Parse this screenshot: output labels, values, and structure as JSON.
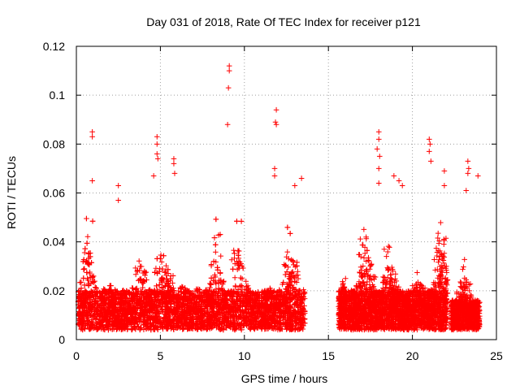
{
  "chart_data": {
    "type": "scatter",
    "title": "Day 031 of 2018, Rate Of TEC Index for receiver p121",
    "xlabel": "GPS time / hours",
    "ylabel": "ROTI / TECUs",
    "xlim": [
      0,
      25
    ],
    "ylim": [
      0,
      0.12
    ],
    "xticks": [
      0,
      5,
      10,
      15,
      20,
      25
    ],
    "yticks": [
      0,
      0.02,
      0.04,
      0.06,
      0.08,
      0.1,
      0.12
    ],
    "xtick_labels": [
      "0",
      "5",
      "10",
      "15",
      "20",
      "25"
    ],
    "ytick_labels": [
      "0",
      "0.02",
      "0.04",
      "0.06",
      "0.08",
      "0.1",
      "0.12"
    ],
    "grid": true,
    "marker": "+",
    "color": "#ff0000",
    "series": [
      {
        "name": "ROTI",
        "description_segments": [
          {
            "x_range": [
              0.1,
              13.6
            ],
            "baseline_range": [
              0.004,
              0.02
            ],
            "envelope": "bursty"
          },
          {
            "x_range": [
              15.6,
              22.1
            ],
            "baseline_range": [
              0.004,
              0.02
            ],
            "envelope": "bursty"
          },
          {
            "x_range": [
              22.3,
              24.0
            ],
            "baseline_range": [
              0.004,
              0.016
            ],
            "envelope": "bursty"
          }
        ],
        "peaks": [
          {
            "x": 0.95,
            "y": 0.085
          },
          {
            "x": 0.95,
            "y": 0.083
          },
          {
            "x": 0.95,
            "y": 0.065
          },
          {
            "x": 2.5,
            "y": 0.063
          },
          {
            "x": 2.5,
            "y": 0.057
          },
          {
            "x": 4.8,
            "y": 0.083
          },
          {
            "x": 4.8,
            "y": 0.08
          },
          {
            "x": 4.8,
            "y": 0.076
          },
          {
            "x": 4.85,
            "y": 0.074
          },
          {
            "x": 4.6,
            "y": 0.067
          },
          {
            "x": 5.8,
            "y": 0.074
          },
          {
            "x": 5.8,
            "y": 0.072
          },
          {
            "x": 5.85,
            "y": 0.068
          },
          {
            "x": 9.1,
            "y": 0.112
          },
          {
            "x": 9.1,
            "y": 0.11
          },
          {
            "x": 9.05,
            "y": 0.103
          },
          {
            "x": 9.0,
            "y": 0.088
          },
          {
            "x": 11.9,
            "y": 0.094
          },
          {
            "x": 11.85,
            "y": 0.089
          },
          {
            "x": 11.9,
            "y": 0.088
          },
          {
            "x": 11.8,
            "y": 0.07
          },
          {
            "x": 11.8,
            "y": 0.067
          },
          {
            "x": 13.4,
            "y": 0.066
          },
          {
            "x": 13.0,
            "y": 0.063
          },
          {
            "x": 18.0,
            "y": 0.085
          },
          {
            "x": 18.0,
            "y": 0.082
          },
          {
            "x": 17.9,
            "y": 0.078
          },
          {
            "x": 18.05,
            "y": 0.075
          },
          {
            "x": 18.0,
            "y": 0.07
          },
          {
            "x": 18.0,
            "y": 0.064
          },
          {
            "x": 18.9,
            "y": 0.067
          },
          {
            "x": 19.2,
            "y": 0.065
          },
          {
            "x": 19.4,
            "y": 0.063
          },
          {
            "x": 21.0,
            "y": 0.082
          },
          {
            "x": 21.05,
            "y": 0.08
          },
          {
            "x": 21.0,
            "y": 0.077
          },
          {
            "x": 21.1,
            "y": 0.073
          },
          {
            "x": 21.9,
            "y": 0.069
          },
          {
            "x": 21.9,
            "y": 0.063
          },
          {
            "x": 23.3,
            "y": 0.073
          },
          {
            "x": 23.35,
            "y": 0.07
          },
          {
            "x": 23.3,
            "y": 0.068
          },
          {
            "x": 23.9,
            "y": 0.067
          },
          {
            "x": 23.2,
            "y": 0.061
          }
        ]
      }
    ]
  }
}
